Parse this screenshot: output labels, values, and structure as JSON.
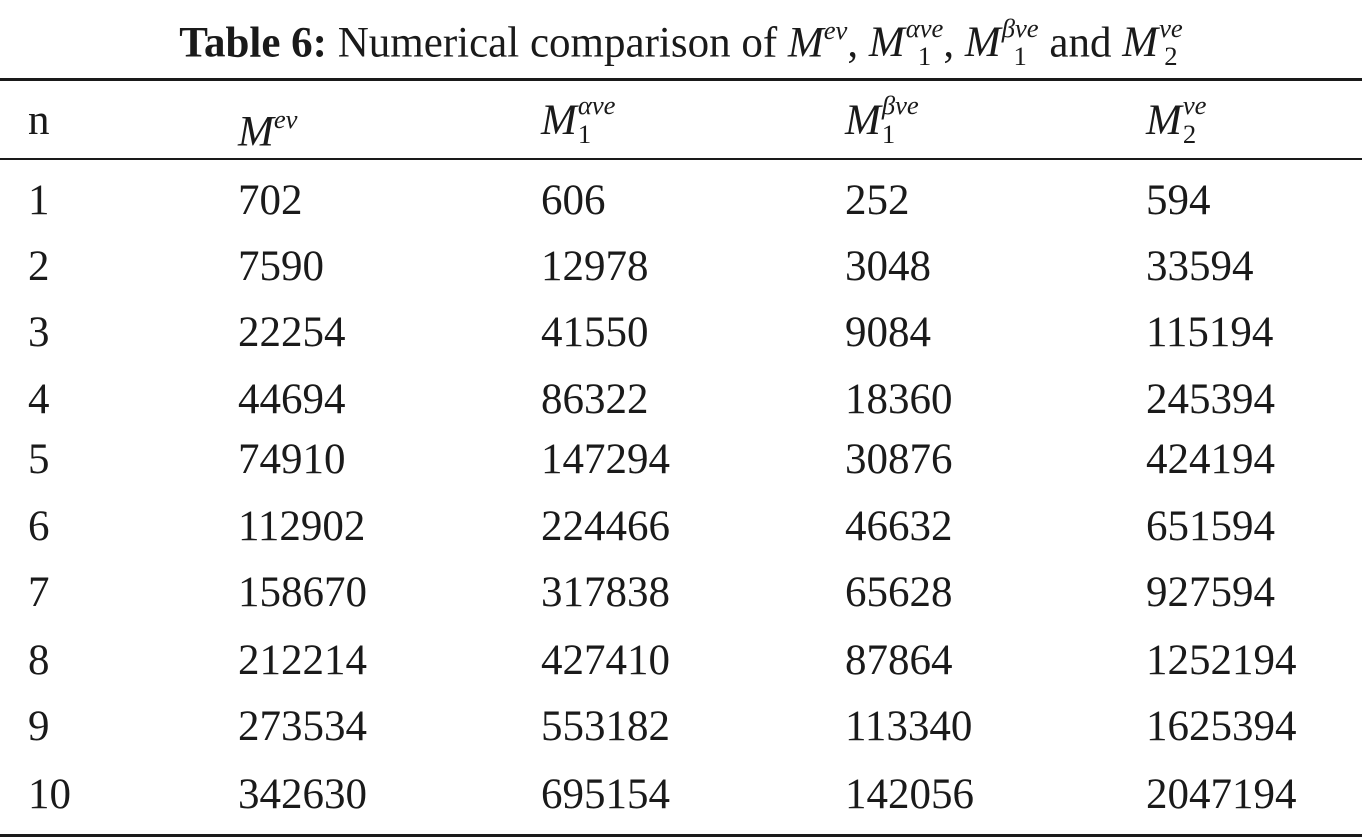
{
  "caption": {
    "label": "Table 6:",
    "text_prefix": "Numerical comparison of",
    "and_text": "and",
    "comma": ","
  },
  "symbols": {
    "M": "M",
    "ev": "ev",
    "alpha_ve": "αve",
    "beta_ve": "βve",
    "ve": "ve",
    "sub1": "1",
    "sub2": "2"
  },
  "table": {
    "n_header": "n",
    "rows": [
      [
        "1",
        "702",
        "606",
        "252",
        "594"
      ],
      [
        "2",
        "7590",
        "12978",
        "3048",
        "33594"
      ],
      [
        "3",
        "22254",
        "41550",
        "9084",
        "115194"
      ],
      [
        "4",
        "44694",
        "86322",
        "18360",
        "245394"
      ],
      [
        "5",
        "74910",
        "147294",
        "30876",
        "424194"
      ],
      [
        "6",
        "112902",
        "224466",
        "46632",
        "651594"
      ],
      [
        "7",
        "158670",
        "317838",
        "65628",
        "927594"
      ],
      [
        "8",
        "212214",
        "427410",
        "87864",
        "1252194"
      ],
      [
        "9",
        "273534",
        "553182",
        "113340",
        "1625394"
      ],
      [
        "10",
        "342630",
        "695154",
        "142056",
        "2047194"
      ]
    ]
  }
}
